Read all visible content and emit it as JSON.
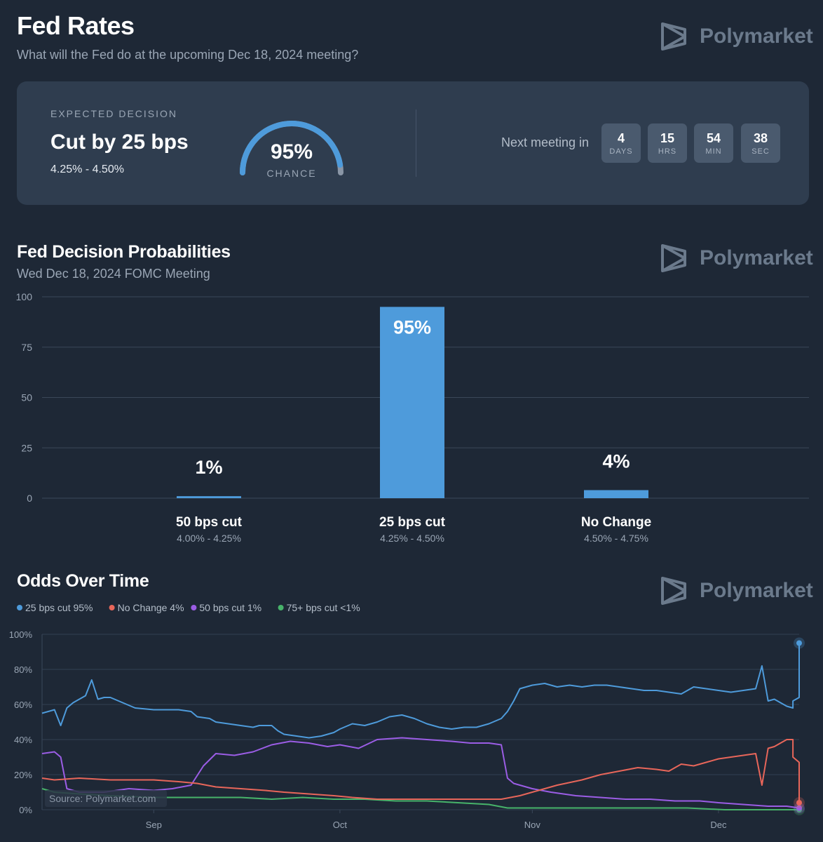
{
  "header": {
    "title": "Fed Rates",
    "subtitle": "What will the Fed do at the upcoming Dec 18, 2024 meeting?",
    "brand": "Polymarket"
  },
  "expected": {
    "label": "EXPECTED DECISION",
    "decision": "Cut by 25 bps",
    "range": "4.25% - 4.50%",
    "chance_value": 95,
    "chance_text": "95%",
    "chance_label": "CHANCE"
  },
  "countdown": {
    "label": "Next meeting in",
    "items": [
      {
        "value": "4",
        "unit": "DAYS"
      },
      {
        "value": "15",
        "unit": "HRS"
      },
      {
        "value": "54",
        "unit": "MIN"
      },
      {
        "value": "38",
        "unit": "SEC"
      }
    ]
  },
  "probabilities": {
    "title": "Fed Decision Probabilities",
    "subtitle": "Wed Dec 18, 2024 FOMC Meeting"
  },
  "odds": {
    "title": "Odds Over Time",
    "source": "Source: Polymarket.com"
  },
  "colors": {
    "accent_blue": "#4e9bdb",
    "red": "#e8665a",
    "purple": "#9b5de5",
    "green": "#47b36a",
    "background": "#1e2836",
    "card": "#2f3d4f"
  },
  "chart_data": [
    {
      "type": "bar",
      "categories": [
        "50 bps cut",
        "25 bps cut",
        "No Change"
      ],
      "category_ranges": [
        "4.00% - 4.25%",
        "4.25% - 4.50%",
        "4.50% - 4.75%"
      ],
      "values": [
        1,
        95,
        4
      ],
      "value_labels": [
        "1%",
        "95%",
        "4%"
      ],
      "ylim": [
        0,
        100
      ],
      "yticks": [
        0,
        25,
        50,
        75,
        100
      ],
      "grid": true
    },
    {
      "type": "line",
      "x_start": "2024-08-14",
      "x_end": "2024-12-14",
      "xticks": [
        {
          "date": "2024-09-01",
          "label": "Sep"
        },
        {
          "date": "2024-10-01",
          "label": "Oct"
        },
        {
          "date": "2024-11-01",
          "label": "Nov"
        },
        {
          "date": "2024-12-01",
          "label": "Dec"
        }
      ],
      "ylim": [
        0,
        100
      ],
      "yticks": [
        0,
        20,
        40,
        60,
        80,
        100
      ],
      "ytick_labels": [
        "0%",
        "20%",
        "40%",
        "60%",
        "80%",
        "100%"
      ],
      "legend_position": "top-left",
      "series": [
        {
          "name": "25 bps cut",
          "legend_label": "25 bps cut 95%",
          "color": "#4e9bdb",
          "points": [
            [
              "2024-08-14",
              55
            ],
            [
              "2024-08-16",
              57
            ],
            [
              "2024-08-17",
              48
            ],
            [
              "2024-08-18",
              58
            ],
            [
              "2024-08-19",
              61
            ],
            [
              "2024-08-20",
              63
            ],
            [
              "2024-08-21",
              65
            ],
            [
              "2024-08-22",
              74
            ],
            [
              "2024-08-23",
              63
            ],
            [
              "2024-08-24",
              64
            ],
            [
              "2024-08-25",
              64
            ],
            [
              "2024-08-27",
              61
            ],
            [
              "2024-08-29",
              58
            ],
            [
              "2024-09-01",
              57
            ],
            [
              "2024-09-03",
              57
            ],
            [
              "2024-09-05",
              57
            ],
            [
              "2024-09-07",
              56
            ],
            [
              "2024-09-08",
              53
            ],
            [
              "2024-09-10",
              52
            ],
            [
              "2024-09-11",
              50
            ],
            [
              "2024-09-13",
              49
            ],
            [
              "2024-09-15",
              48
            ],
            [
              "2024-09-17",
              47
            ],
            [
              "2024-09-18",
              48
            ],
            [
              "2024-09-20",
              48
            ],
            [
              "2024-09-21",
              45
            ],
            [
              "2024-09-22",
              43
            ],
            [
              "2024-09-24",
              42
            ],
            [
              "2024-09-26",
              41
            ],
            [
              "2024-09-28",
              42
            ],
            [
              "2024-09-30",
              44
            ],
            [
              "2024-10-01",
              46
            ],
            [
              "2024-10-03",
              49
            ],
            [
              "2024-10-05",
              48
            ],
            [
              "2024-10-07",
              50
            ],
            [
              "2024-10-09",
              53
            ],
            [
              "2024-10-11",
              54
            ],
            [
              "2024-10-13",
              52
            ],
            [
              "2024-10-15",
              49
            ],
            [
              "2024-10-17",
              47
            ],
            [
              "2024-10-19",
              46
            ],
            [
              "2024-10-21",
              47
            ],
            [
              "2024-10-23",
              47
            ],
            [
              "2024-10-25",
              49
            ],
            [
              "2024-10-27",
              52
            ],
            [
              "2024-10-28",
              56
            ],
            [
              "2024-10-29",
              62
            ],
            [
              "2024-10-30",
              69
            ],
            [
              "2024-11-01",
              71
            ],
            [
              "2024-11-03",
              72
            ],
            [
              "2024-11-05",
              70
            ],
            [
              "2024-11-07",
              71
            ],
            [
              "2024-11-09",
              70
            ],
            [
              "2024-11-11",
              71
            ],
            [
              "2024-11-13",
              71
            ],
            [
              "2024-11-15",
              70
            ],
            [
              "2024-11-17",
              69
            ],
            [
              "2024-11-19",
              68
            ],
            [
              "2024-11-21",
              68
            ],
            [
              "2024-11-23",
              67
            ],
            [
              "2024-11-25",
              66
            ],
            [
              "2024-11-27",
              70
            ],
            [
              "2024-11-29",
              69
            ],
            [
              "2024-12-01",
              68
            ],
            [
              "2024-12-03",
              67
            ],
            [
              "2024-12-05",
              68
            ],
            [
              "2024-12-07",
              69
            ],
            [
              "2024-12-08",
              82
            ],
            [
              "2024-12-09",
              62
            ],
            [
              "2024-12-10",
              63
            ],
            [
              "2024-12-11",
              61
            ],
            [
              "2024-12-12",
              59
            ],
            [
              "2024-12-13",
              58
            ],
            [
              "2024-12-13",
              62
            ],
            [
              "2024-12-14",
              64
            ],
            [
              "2024-12-14",
              95
            ]
          ]
        },
        {
          "name": "No Change",
          "legend_label": "No Change 4%",
          "color": "#e8665a",
          "points": [
            [
              "2024-08-14",
              18
            ],
            [
              "2024-08-16",
              17
            ],
            [
              "2024-08-20",
              18
            ],
            [
              "2024-08-25",
              17
            ],
            [
              "2024-09-01",
              17
            ],
            [
              "2024-09-05",
              16
            ],
            [
              "2024-09-08",
              15
            ],
            [
              "2024-09-11",
              13
            ],
            [
              "2024-09-15",
              12
            ],
            [
              "2024-09-19",
              11
            ],
            [
              "2024-09-22",
              10
            ],
            [
              "2024-09-26",
              9
            ],
            [
              "2024-09-30",
              8
            ],
            [
              "2024-10-03",
              7
            ],
            [
              "2024-10-07",
              6
            ],
            [
              "2024-10-11",
              6
            ],
            [
              "2024-10-15",
              6
            ],
            [
              "2024-10-19",
              6
            ],
            [
              "2024-10-23",
              6
            ],
            [
              "2024-10-27",
              6
            ],
            [
              "2024-10-30",
              8
            ],
            [
              "2024-11-02",
              11
            ],
            [
              "2024-11-05",
              14
            ],
            [
              "2024-11-09",
              17
            ],
            [
              "2024-11-12",
              20
            ],
            [
              "2024-11-15",
              22
            ],
            [
              "2024-11-18",
              24
            ],
            [
              "2024-11-21",
              23
            ],
            [
              "2024-11-23",
              22
            ],
            [
              "2024-11-25",
              26
            ],
            [
              "2024-11-27",
              25
            ],
            [
              "2024-11-29",
              27
            ],
            [
              "2024-12-01",
              29
            ],
            [
              "2024-12-03",
              30
            ],
            [
              "2024-12-05",
              31
            ],
            [
              "2024-12-07",
              32
            ],
            [
              "2024-12-08",
              14
            ],
            [
              "2024-12-09",
              35
            ],
            [
              "2024-12-10",
              36
            ],
            [
              "2024-12-11",
              38
            ],
            [
              "2024-12-12",
              40
            ],
            [
              "2024-12-13",
              40
            ],
            [
              "2024-12-13",
              30
            ],
            [
              "2024-12-14",
              27
            ],
            [
              "2024-12-14",
              4
            ]
          ]
        },
        {
          "name": "50 bps cut",
          "legend_label": "50 bps cut 1%",
          "color": "#9b5de5",
          "points": [
            [
              "2024-08-14",
              32
            ],
            [
              "2024-08-16",
              33
            ],
            [
              "2024-08-17",
              30
            ],
            [
              "2024-08-18",
              12
            ],
            [
              "2024-08-20",
              10
            ],
            [
              "2024-08-24",
              10
            ],
            [
              "2024-08-28",
              12
            ],
            [
              "2024-09-01",
              11
            ],
            [
              "2024-09-04",
              12
            ],
            [
              "2024-09-07",
              14
            ],
            [
              "2024-09-09",
              25
            ],
            [
              "2024-09-11",
              32
            ],
            [
              "2024-09-14",
              31
            ],
            [
              "2024-09-17",
              33
            ],
            [
              "2024-09-20",
              37
            ],
            [
              "2024-09-23",
              39
            ],
            [
              "2024-09-26",
              38
            ],
            [
              "2024-09-29",
              36
            ],
            [
              "2024-10-01",
              37
            ],
            [
              "2024-10-04",
              35
            ],
            [
              "2024-10-07",
              40
            ],
            [
              "2024-10-11",
              41
            ],
            [
              "2024-10-15",
              40
            ],
            [
              "2024-10-19",
              39
            ],
            [
              "2024-10-22",
              38
            ],
            [
              "2024-10-25",
              38
            ],
            [
              "2024-10-27",
              37
            ],
            [
              "2024-10-28",
              18
            ],
            [
              "2024-10-29",
              15
            ],
            [
              "2024-11-01",
              12
            ],
            [
              "2024-11-04",
              10
            ],
            [
              "2024-11-08",
              8
            ],
            [
              "2024-11-12",
              7
            ],
            [
              "2024-11-16",
              6
            ],
            [
              "2024-11-20",
              6
            ],
            [
              "2024-11-24",
              5
            ],
            [
              "2024-11-28",
              5
            ],
            [
              "2024-12-01",
              4
            ],
            [
              "2024-12-05",
              3
            ],
            [
              "2024-12-09",
              2
            ],
            [
              "2024-12-12",
              2
            ],
            [
              "2024-12-14",
              1
            ]
          ]
        },
        {
          "name": "75+ bps cut",
          "legend_label": "75+ bps cut <1%",
          "color": "#47b36a",
          "points": [
            [
              "2024-08-14",
              12
            ],
            [
              "2024-08-16",
              10
            ],
            [
              "2024-08-20",
              9
            ],
            [
              "2024-08-25",
              8
            ],
            [
              "2024-09-01",
              7
            ],
            [
              "2024-09-05",
              7
            ],
            [
              "2024-09-10",
              7
            ],
            [
              "2024-09-15",
              7
            ],
            [
              "2024-09-20",
              6
            ],
            [
              "2024-09-25",
              7
            ],
            [
              "2024-09-30",
              6
            ],
            [
              "2024-10-05",
              6
            ],
            [
              "2024-10-10",
              5
            ],
            [
              "2024-10-15",
              5
            ],
            [
              "2024-10-20",
              4
            ],
            [
              "2024-10-25",
              3
            ],
            [
              "2024-10-28",
              1
            ],
            [
              "2024-11-02",
              1
            ],
            [
              "2024-11-08",
              1
            ],
            [
              "2024-11-14",
              1
            ],
            [
              "2024-11-20",
              1
            ],
            [
              "2024-11-26",
              1
            ],
            [
              "2024-12-02",
              0
            ],
            [
              "2024-12-08",
              0
            ],
            [
              "2024-12-14",
              0
            ]
          ]
        }
      ]
    }
  ]
}
